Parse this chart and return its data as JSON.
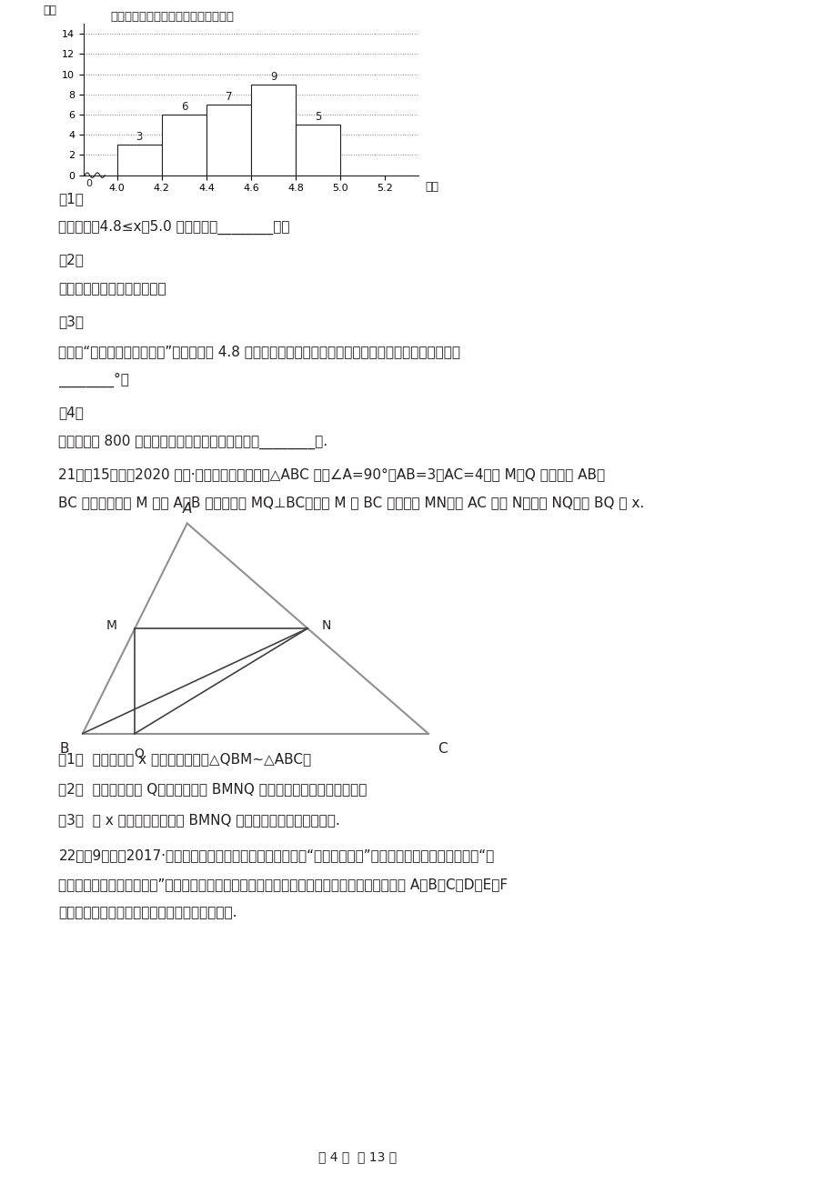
{
  "chart_title": "抽取的学生活动前视力频数分布直方图",
  "chart_ylabel": "频数",
  "chart_xlabel": "视力",
  "bar_x": [
    4.0,
    4.2,
    4.4,
    4.6,
    4.8,
    5.0
  ],
  "bar_heights": [
    3,
    6,
    7,
    9,
    5,
    0
  ],
  "bar_labels": [
    "3",
    "6",
    "7",
    "9",
    "5",
    ""
  ],
  "bar_width": 0.2,
  "yticks": [
    0,
    2,
    4,
    6,
    8,
    10,
    12,
    14
  ],
  "xticks": [
    4.0,
    4.2,
    4.4,
    4.6,
    4.8,
    5.0,
    5.2
  ],
  "xlim": [
    3.85,
    5.35
  ],
  "ylim": [
    0,
    15
  ],
  "bg_color": "#ffffff",
  "text_color": "#231f20",
  "bar_color": "#ffffff",
  "bar_edge_color": "#231f20",
  "grid_color": "#888888",
  "axis_color": "#231f20"
}
